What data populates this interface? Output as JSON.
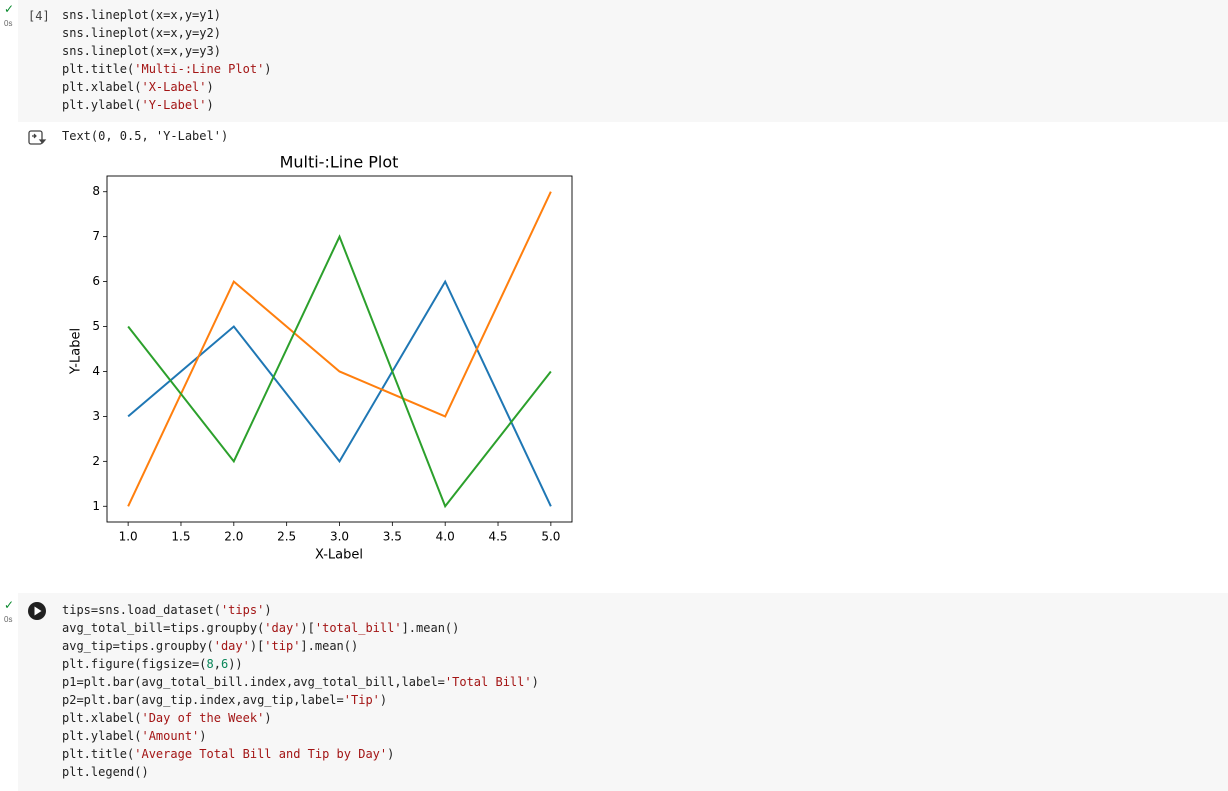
{
  "cells": [
    {
      "number": "[4]",
      "status_time": "0s",
      "code": [
        "sns.lineplot(x=x,y=y1)",
        "sns.lineplot(x=x,y=y2)",
        "sns.lineplot(x=x,y=y3)",
        "plt.title('Multi-:Line Plot')",
        "plt.xlabel('X-Label')",
        "plt.ylabel('Y-Label')"
      ],
      "output_text": "Text(0, 0.5, 'Y-Label')"
    },
    {
      "status_time": "0s",
      "code": [
        "tips=sns.load_dataset('tips')",
        "avg_total_bill=tips.groupby('day')['total_bill'].mean()",
        "avg_tip=tips.groupby('day')['tip'].mean()",
        "plt.figure(figsize=(8,6))",
        "p1=plt.bar(avg_total_bill.index,avg_total_bill,label='Total Bill')",
        "p2=plt.bar(avg_tip.index,avg_tip,label='Tip')",
        "plt.xlabel('Day of the Week')",
        "plt.ylabel('Amount')",
        "plt.title('Average Total Bill and Tip by Day')",
        "plt.legend()"
      ]
    }
  ],
  "chart_data": {
    "type": "line",
    "title": "Multi-:Line Plot",
    "x_label": "X-Label",
    "y_label": "Y-Label",
    "x": [
      1,
      2,
      3,
      4,
      5
    ],
    "series": [
      {
        "color": "#1f77b4",
        "values": [
          3,
          5,
          2,
          6,
          1
        ]
      },
      {
        "color": "#ff7f0e",
        "values": [
          1,
          6,
          4,
          3,
          8
        ]
      },
      {
        "color": "#2ca02c",
        "values": [
          5,
          2,
          7,
          1,
          4
        ]
      }
    ],
    "xlim": [
      0.8,
      5.2
    ],
    "ylim": [
      0.65,
      8.35
    ],
    "xticks": [
      {
        "value": 1,
        "label": "1.0"
      },
      1.5,
      {
        "value": 2,
        "label": "2.0"
      },
      2.5,
      {
        "value": 3,
        "label": "3.0"
      },
      3.5,
      {
        "value": 4,
        "label": "4.0"
      },
      4.5,
      {
        "value": 5,
        "label": "5.0"
      }
    ],
    "yticks": [
      1,
      2,
      3,
      4,
      5,
      6,
      7,
      8
    ]
  }
}
